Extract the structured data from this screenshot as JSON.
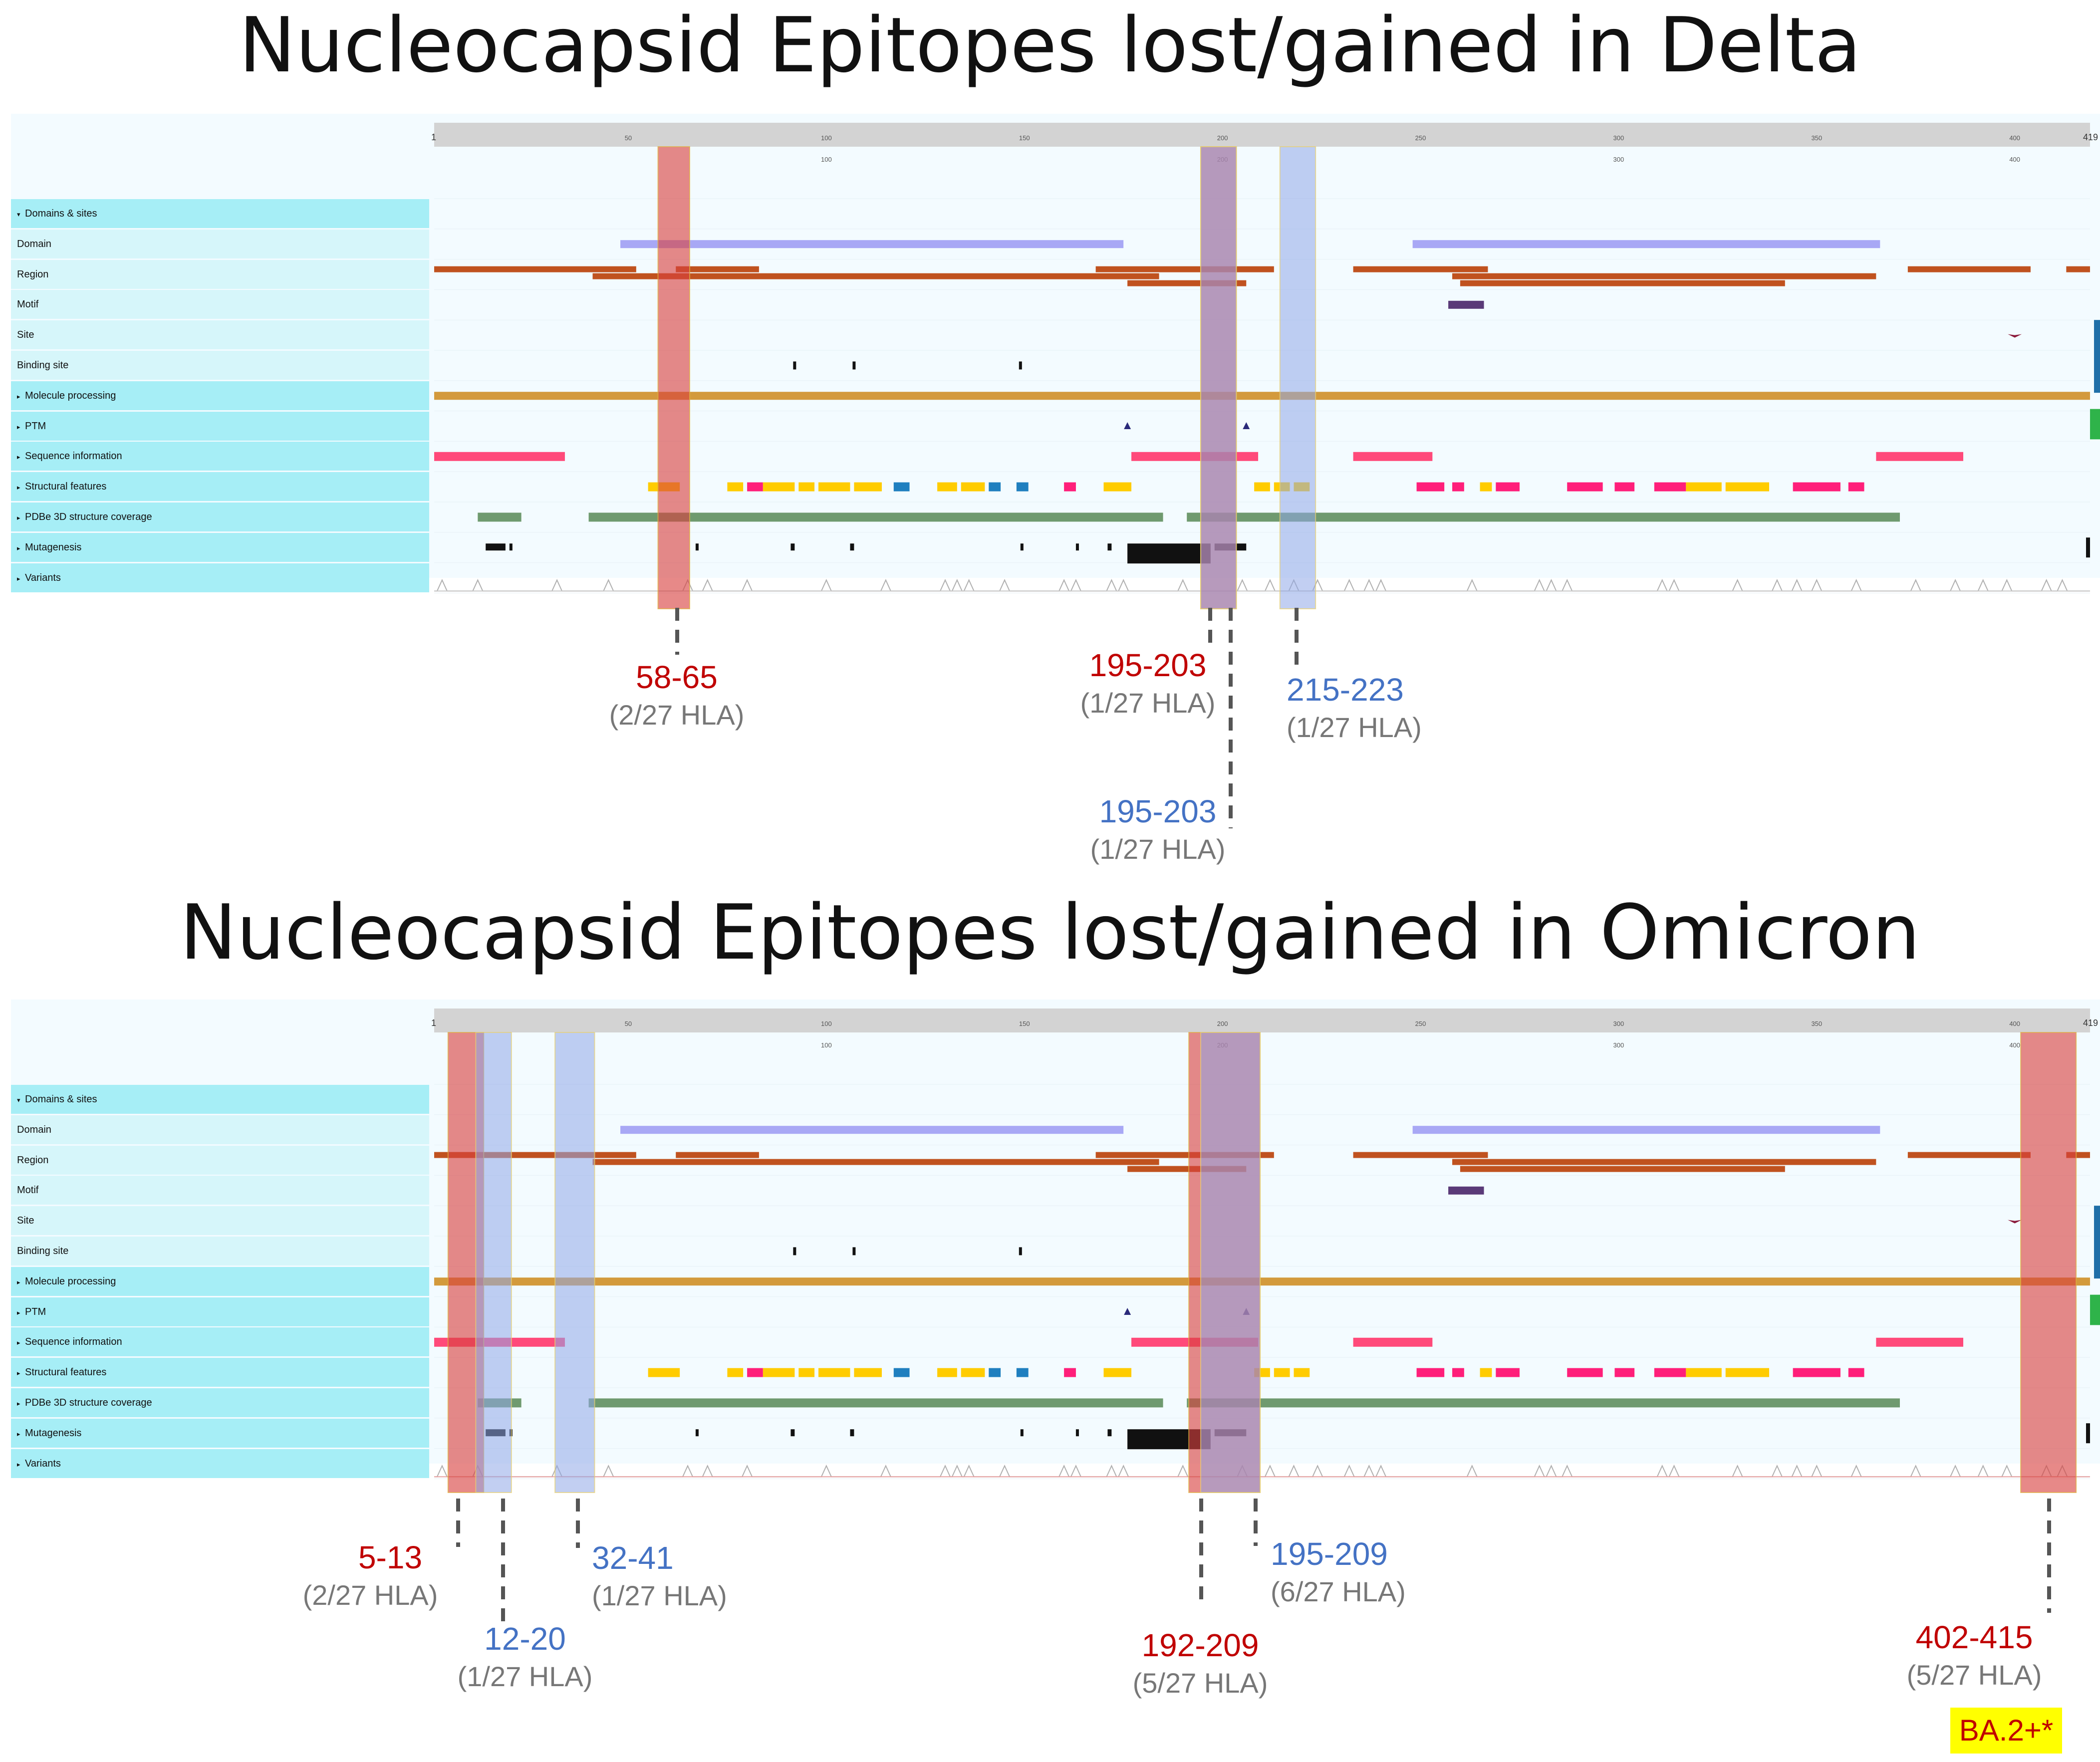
{
  "panels": [
    {
      "id": "delta",
      "title": "Nucleocapsid Epitopes lost/gained in Delta",
      "axis": {
        "start": 1,
        "end": 419,
        "top_ticks": [
          50,
          100,
          150,
          200,
          250,
          300,
          350,
          400
        ],
        "major_ticks": [
          100,
          200,
          300,
          400
        ]
      },
      "rows": [
        {
          "label": "Domains & sites",
          "kind": "cat",
          "open": true
        },
        {
          "label": "Domain",
          "kind": "sub"
        },
        {
          "label": "Region",
          "kind": "sub"
        },
        {
          "label": "Motif",
          "kind": "sub"
        },
        {
          "label": "Site",
          "kind": "sub"
        },
        {
          "label": "Binding site",
          "kind": "sub"
        },
        {
          "label": "Molecule processing",
          "kind": "cat"
        },
        {
          "label": "PTM",
          "kind": "cat"
        },
        {
          "label": "Sequence information",
          "kind": "cat"
        },
        {
          "label": "Structural features",
          "kind": "cat"
        },
        {
          "label": "PDBe 3D structure coverage",
          "kind": "cat"
        },
        {
          "label": "Mutagenesis",
          "kind": "cat"
        },
        {
          "label": "Variants",
          "kind": "cat"
        }
      ],
      "highlights": [
        {
          "start": 58,
          "end": 65,
          "status": "lost"
        },
        {
          "start": 195,
          "end": 203,
          "status": "lost"
        },
        {
          "start": 195,
          "end": 203,
          "status": "gained"
        },
        {
          "start": 215,
          "end": 223,
          "status": "gained"
        }
      ],
      "annotations": [
        {
          "range": "58-65",
          "hla": "(2/27 HLA)",
          "status": "lost"
        },
        {
          "range": "195-203",
          "hla": "(1/27 HLA)",
          "status": "lost"
        },
        {
          "range": "215-223",
          "hla": "(1/27 HLA)",
          "status": "gained"
        },
        {
          "range": "195-203",
          "hla": "(1/27 HLA)",
          "status": "gained"
        }
      ]
    },
    {
      "id": "omicron",
      "title": "Nucleocapsid Epitopes lost/gained in Omicron",
      "axis": {
        "start": 1,
        "end": 419,
        "top_ticks": [
          50,
          100,
          150,
          200,
          250,
          300,
          350,
          400
        ],
        "major_ticks": [
          100,
          200,
          300,
          400
        ]
      },
      "rows": [
        {
          "label": "Domains & sites",
          "kind": "cat",
          "open": true
        },
        {
          "label": "Domain",
          "kind": "sub"
        },
        {
          "label": "Region",
          "kind": "sub"
        },
        {
          "label": "Motif",
          "kind": "sub"
        },
        {
          "label": "Site",
          "kind": "sub"
        },
        {
          "label": "Binding site",
          "kind": "sub"
        },
        {
          "label": "Molecule processing",
          "kind": "cat"
        },
        {
          "label": "PTM",
          "kind": "cat"
        },
        {
          "label": "Sequence information",
          "kind": "cat"
        },
        {
          "label": "Structural features",
          "kind": "cat"
        },
        {
          "label": "PDBe 3D structure coverage",
          "kind": "cat"
        },
        {
          "label": "Mutagenesis",
          "kind": "cat"
        },
        {
          "label": "Variants",
          "kind": "cat"
        }
      ],
      "highlights": [
        {
          "start": 5,
          "end": 13,
          "status": "lost"
        },
        {
          "start": 12,
          "end": 20,
          "status": "gained"
        },
        {
          "start": 32,
          "end": 41,
          "status": "gained"
        },
        {
          "start": 192,
          "end": 209,
          "status": "lost"
        },
        {
          "start": 195,
          "end": 209,
          "status": "gained"
        },
        {
          "start": 402,
          "end": 415,
          "status": "lost"
        }
      ],
      "annotations": [
        {
          "range": "5-13",
          "hla": "(2/27 HLA)",
          "status": "lost"
        },
        {
          "range": "32-41",
          "hla": "(1/27 HLA)",
          "status": "gained"
        },
        {
          "range": "12-20",
          "hla": "(1/27 HLA)",
          "status": "gained"
        },
        {
          "range": "195-209",
          "hla": "(6/27 HLA)",
          "status": "gained"
        },
        {
          "range": "192-209",
          "hla": "(5/27 HLA)",
          "status": "lost"
        },
        {
          "range": "402-415",
          "hla": "(5/27 HLA)",
          "status": "lost"
        }
      ]
    }
  ],
  "features": {
    "domain": [
      [
        48,
        175
      ],
      [
        248,
        366
      ]
    ],
    "region": [
      [
        [
          1,
          52
        ],
        [
          62,
          83
        ],
        [
          168,
          213
        ],
        [
          233,
          267
        ],
        [
          373,
          404
        ],
        [
          413,
          419
        ]
      ],
      [
        [
          41,
          184
        ],
        [
          258,
          365
        ]
      ],
      [
        [
          176,
          206
        ],
        [
          260,
          342
        ]
      ]
    ],
    "motif": [
      [
        257,
        266
      ]
    ],
    "site": [
      400
    ],
    "binding_site": [
      92,
      107,
      149
    ],
    "molecule_processing": [
      [
        1,
        419
      ]
    ],
    "ptm": [
      176,
      206
    ],
    "sequence_information": [
      [
        1,
        34
      ],
      [
        177,
        209
      ],
      [
        233,
        253
      ],
      [
        365,
        387
      ]
    ],
    "structural_features": [
      [
        55,
        63,
        "#ffcc00"
      ],
      [
        75,
        79,
        "#ffcc00"
      ],
      [
        80,
        84,
        "#ff1f7a"
      ],
      [
        84,
        92,
        "#ffcc00"
      ],
      [
        93,
        97,
        "#ffcc00"
      ],
      [
        98,
        106,
        "#ffcc00"
      ],
      [
        107,
        114,
        "#ffcc00"
      ],
      [
        117,
        121,
        "#1f7fbf"
      ],
      [
        128,
        133,
        "#ffcc00"
      ],
      [
        134,
        140,
        "#ffcc00"
      ],
      [
        141,
        144,
        "#1f7fbf"
      ],
      [
        148,
        151,
        "#1f7fbf"
      ],
      [
        160,
        163,
        "#ff1f7a"
      ],
      [
        170,
        177,
        "#ffcc00"
      ],
      [
        208,
        212,
        "#ffcc00"
      ],
      [
        213,
        217,
        "#ffcc00"
      ],
      [
        218,
        222,
        "#ffcc00"
      ],
      [
        249,
        256,
        "#ff1f7a"
      ],
      [
        258,
        261,
        "#ff1f7a"
      ],
      [
        265,
        268,
        "#ffcc00"
      ],
      [
        269,
        275,
        "#ff1f7a"
      ],
      [
        287,
        296,
        "#ff1f7a"
      ],
      [
        299,
        304,
        "#ff1f7a"
      ],
      [
        309,
        317,
        "#ff1f7a"
      ],
      [
        317,
        326,
        "#ffcc00"
      ],
      [
        327,
        338,
        "#ffcc00"
      ],
      [
        344,
        356,
        "#ff1f7a"
      ],
      [
        358,
        362,
        "#ff1f7a"
      ]
    ],
    "pdbe": [
      [
        12,
        23
      ],
      [
        40,
        185
      ],
      [
        191,
        371
      ]
    ],
    "variant_peaks": [
      3,
      12,
      32,
      45,
      65,
      70,
      80,
      100,
      115,
      130,
      133,
      136,
      145,
      160,
      163,
      172,
      175,
      190,
      205,
      212,
      218,
      224,
      232,
      237,
      240,
      263,
      280,
      283,
      287,
      311,
      314,
      330,
      340,
      345,
      350,
      360,
      375,
      385,
      392,
      398,
      408,
      412
    ]
  },
  "badge": "BA.2+*"
}
